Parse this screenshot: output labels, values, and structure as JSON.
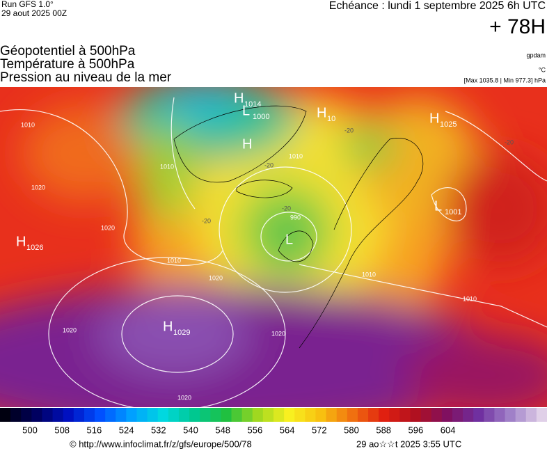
{
  "header": {
    "run": "Run GFS 1.0°",
    "run_date": "29 aout 2025 00Z",
    "echeance": "Echéance : lundi 1 septembre 2025 6h UTC",
    "lead": "+ 78H",
    "fields": [
      "Géopotentiel à 500hPa",
      "Température à 500hPa",
      "Pression au niveau de la mer"
    ],
    "unit_geo": "gpdam",
    "unit_temp": "°C",
    "range": "[Max 1035.8 | Min 977.3] hPa"
  },
  "centers": [
    {
      "letter": "H",
      "value": 1014
    },
    {
      "letter": "L",
      "value": 1000
    },
    {
      "letter": "H",
      "value": null
    },
    {
      "letter": "H",
      "value": 10
    },
    {
      "letter": "H",
      "value": 1025
    },
    {
      "letter": "L",
      "value": 1001
    },
    {
      "letter": "H",
      "value": 1026
    },
    {
      "letter": "L",
      "value": null
    },
    {
      "letter": "H",
      "value": 1029
    }
  ],
  "isobar_labels": [
    1010,
    1010,
    1020,
    1020,
    1010,
    1020,
    1020,
    1010,
    1010,
    1010,
    990,
    1020,
    1020
  ],
  "temp_labels": [
    -20,
    -20,
    -20,
    -20,
    -20
  ],
  "colorbar": {
    "labels": [
      500,
      508,
      516,
      524,
      532,
      540,
      548,
      556,
      564,
      572,
      580,
      588,
      596,
      604
    ]
  },
  "footer": {
    "url": "© http://www.infoclimat.fr/z/gfs/europe/500/78",
    "stamp": "29 ao☆☆t 2025  3:55 UTC"
  }
}
